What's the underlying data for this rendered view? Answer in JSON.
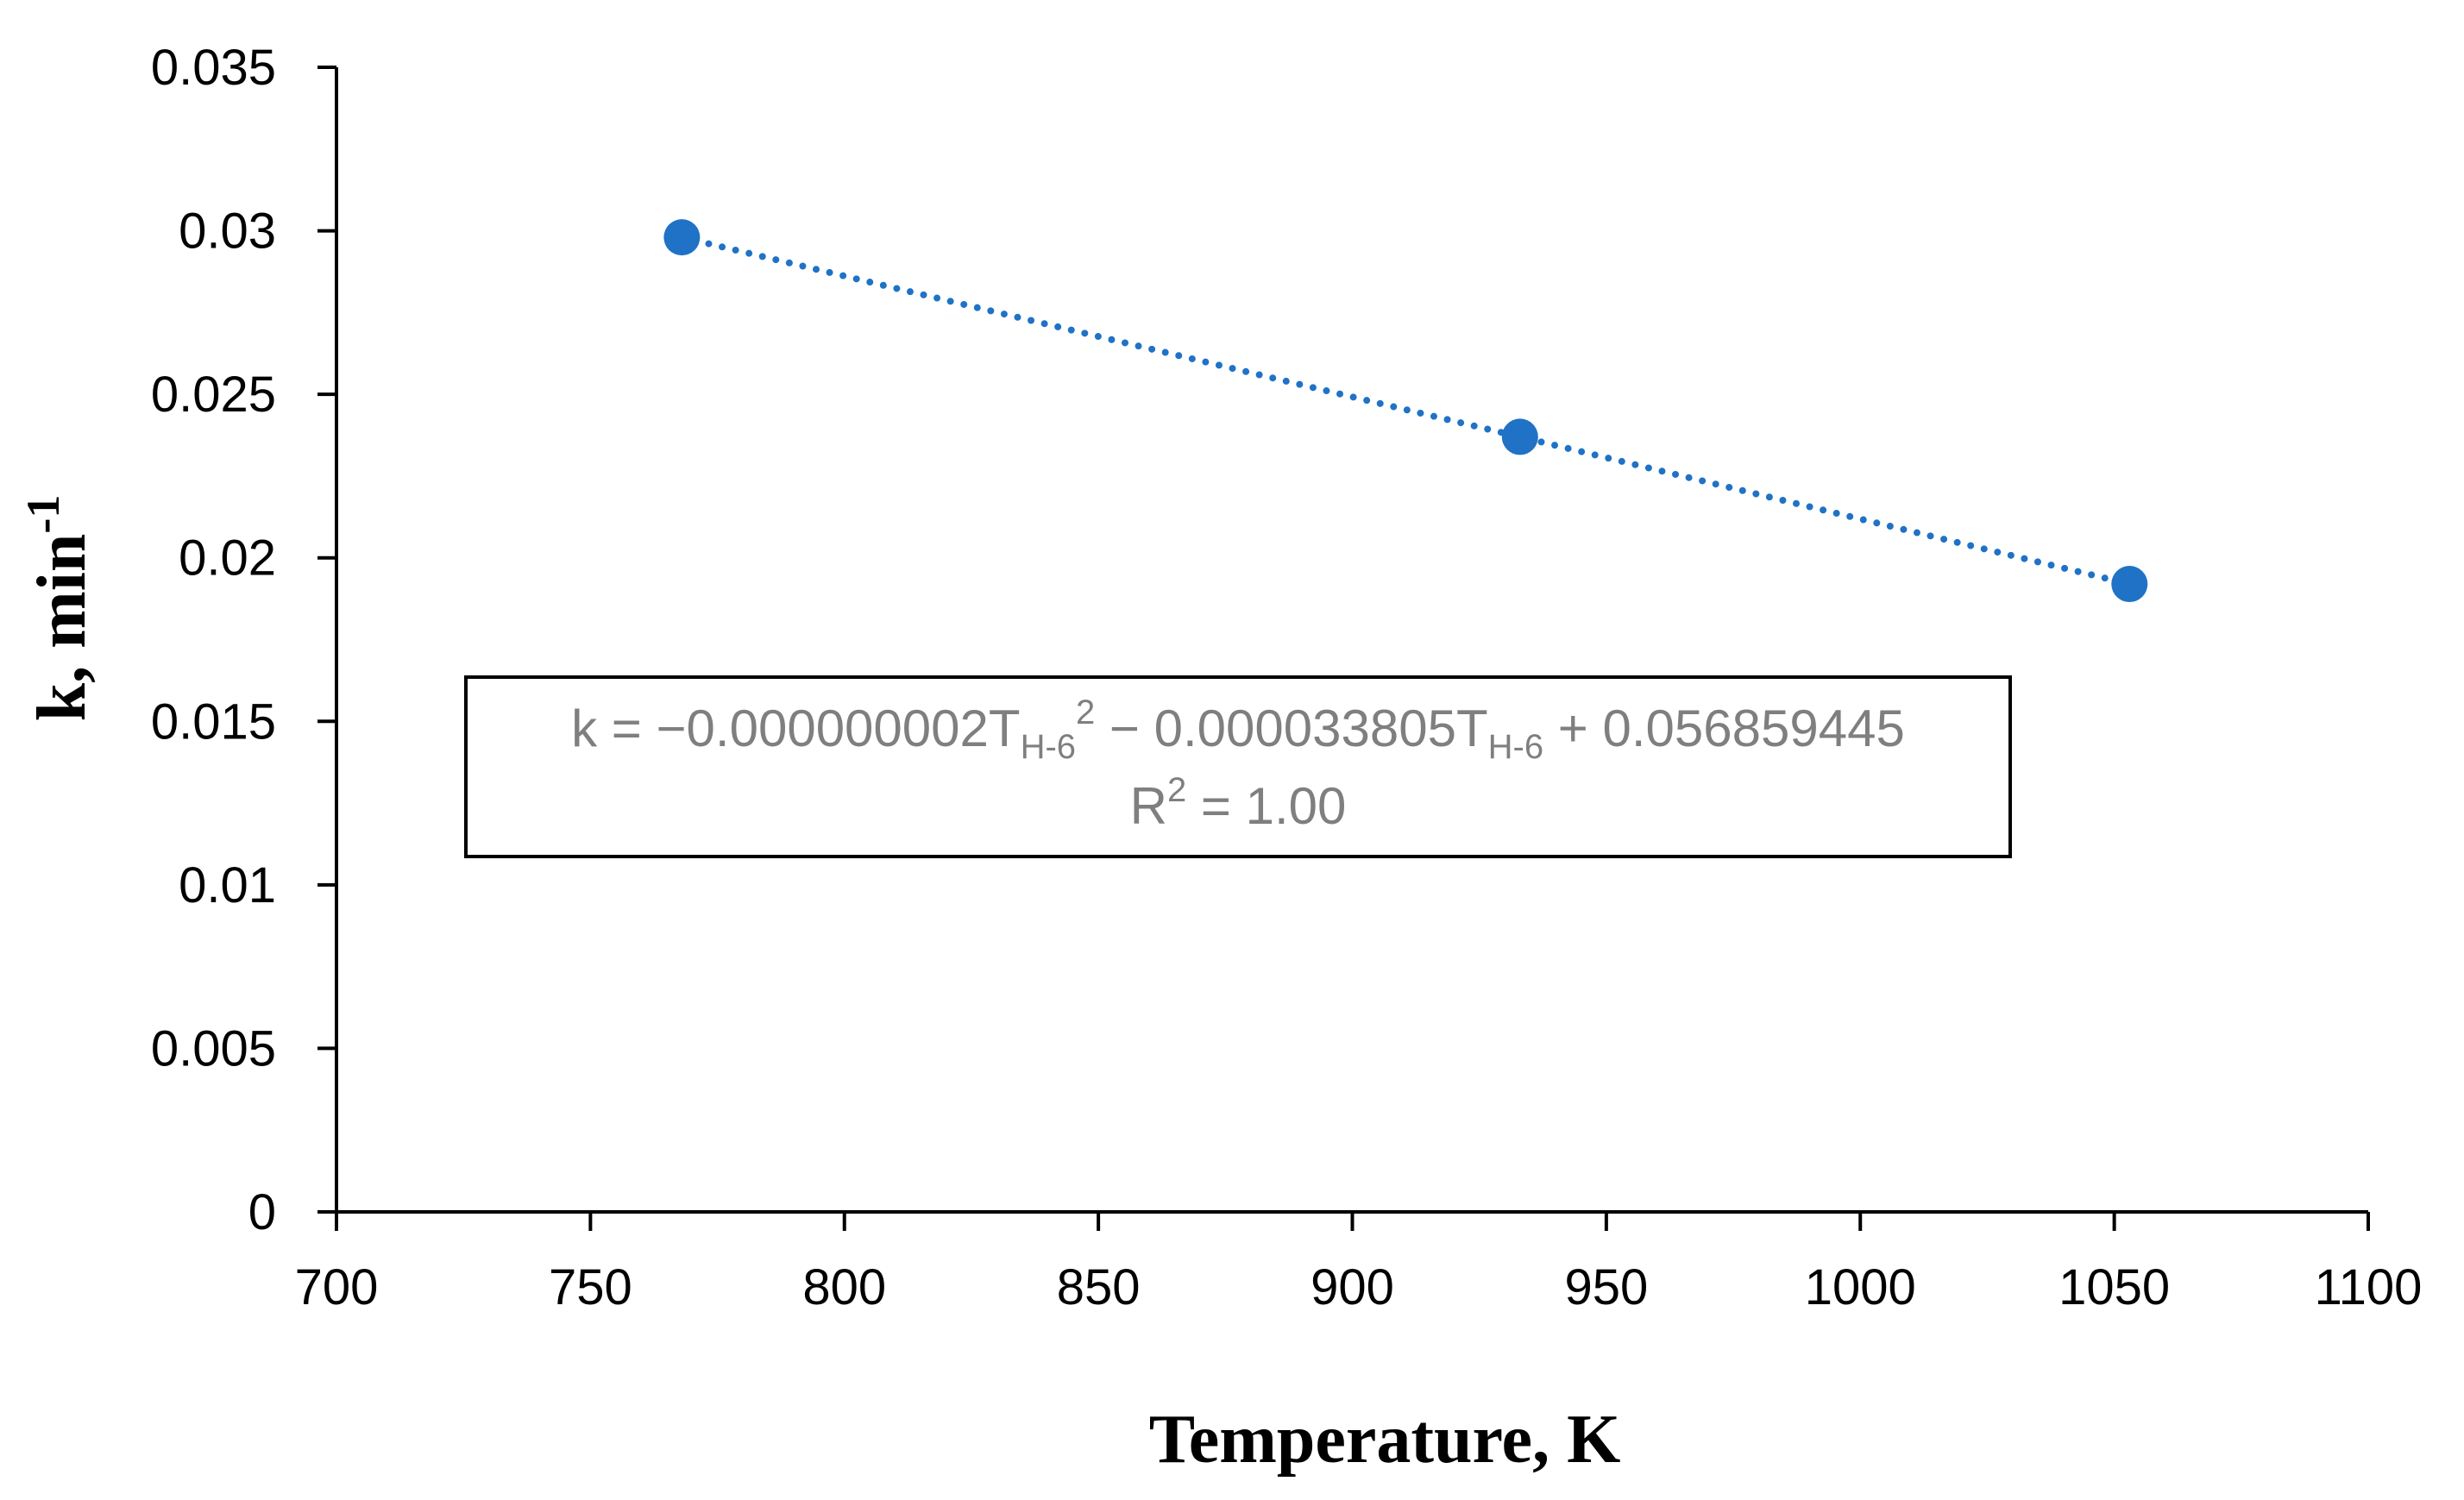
{
  "chart_data": {
    "type": "scatter",
    "x": [
      768,
      933,
      1053
    ],
    "y": [
      0.0298,
      0.0237,
      0.0192
    ],
    "xlabel": "Temperature, K",
    "ylabel": "k, min",
    "ylabel_superscript": "-1",
    "xlim": [
      700,
      1100
    ],
    "ylim": [
      0,
      0.035
    ],
    "xticks": [
      "700",
      "750",
      "800",
      "850",
      "900",
      "950",
      "1000",
      "1050",
      "1100"
    ],
    "yticks": [
      "0",
      "0.005",
      "0.01",
      "0.015",
      "0.02",
      "0.025",
      "0.03",
      "0.035"
    ],
    "grid": false,
    "trendline": {
      "style": "dotted",
      "equation": {
        "prefix": "k = −0.000000002T",
        "sub1": "H-6",
        "sup1": "2",
        "middle": " − 0.000033805T",
        "sub2": "H-6",
        "suffix": " + 0.056859445"
      },
      "r2": {
        "base": "R",
        "sup": "2",
        "rest": " = 1.00"
      }
    },
    "colors": {
      "marker": "#1f72c6",
      "trendline": "#1f72c6",
      "equation_text": "#7f7f7f"
    }
  }
}
